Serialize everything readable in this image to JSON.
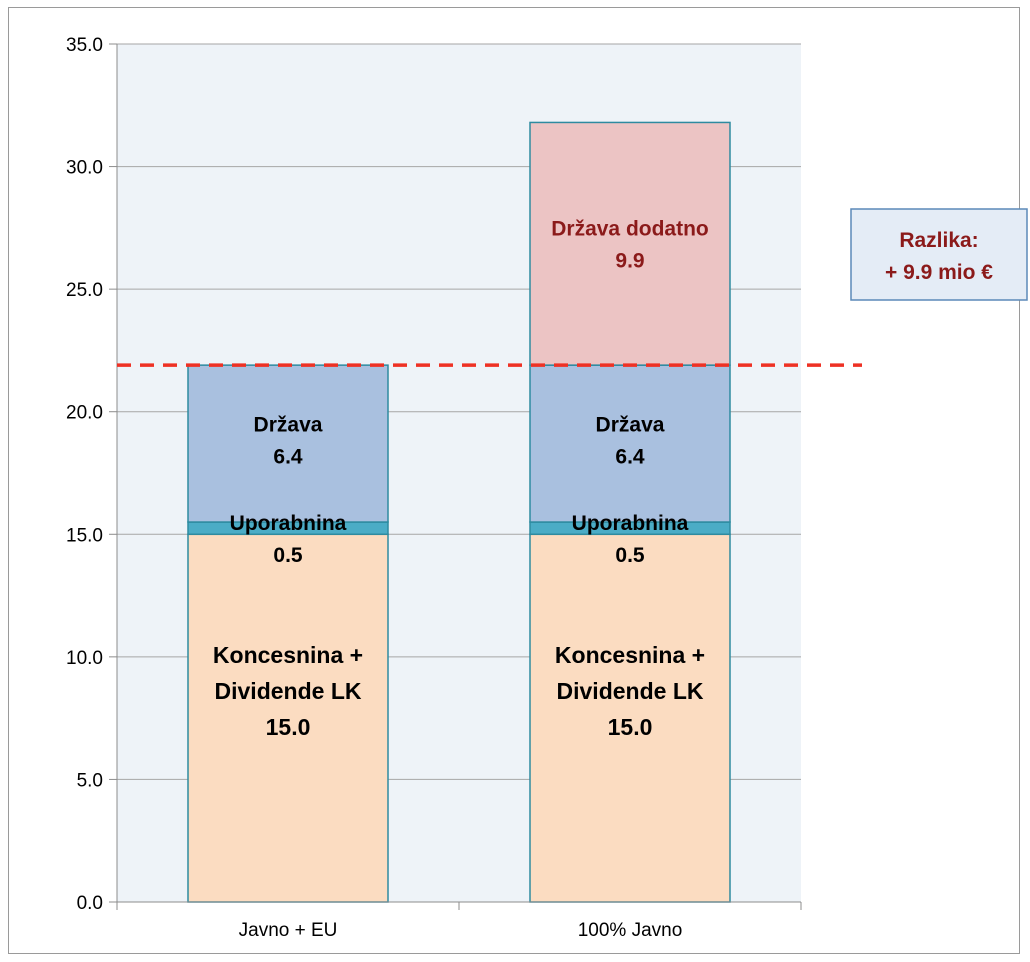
{
  "chart_data": {
    "type": "bar",
    "stacked": true,
    "categories": [
      "Javno + EU",
      "100% Javno"
    ],
    "ylim": [
      0,
      35
    ],
    "yticks": [
      "0.0",
      "5.0",
      "10.0",
      "15.0",
      "20.0",
      "25.0",
      "30.0",
      "35.0"
    ],
    "grid": true,
    "series": [
      {
        "key": "koncesnina",
        "values": [
          15.0,
          15.0
        ],
        "color": "#fbdcc1",
        "label_lines": [
          "Koncesnina +",
          "Dividende LK",
          "15.0"
        ]
      },
      {
        "key": "uporabnina",
        "values": [
          0.5,
          0.5
        ],
        "color": "#4bacc6",
        "label_lines": [
          "Uporabnina",
          "0.5"
        ]
      },
      {
        "key": "drzava",
        "values": [
          6.4,
          6.4
        ],
        "color": "#a9c0df",
        "label_lines": [
          "Država",
          "6.4"
        ]
      },
      {
        "key": "drzava_dodatno",
        "values": [
          0,
          9.9
        ],
        "color": "#ecc4c4",
        "label_lines": [
          "Država dodatno",
          "9.9"
        ]
      }
    ],
    "reference_line": {
      "value": 21.9,
      "color": "#ee3124",
      "style": "dashed"
    },
    "annotation": {
      "lines": [
        "Razlika:",
        "+ 9.9 mio €"
      ],
      "color": "#8b1a1a"
    },
    "colors": {
      "plot_bg": "#eef3f8",
      "bar_border": "#2e8ba0",
      "grid": "#a6a6a6"
    }
  }
}
